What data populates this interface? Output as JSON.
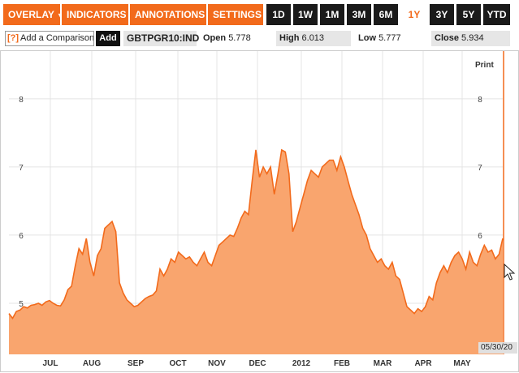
{
  "toolbar": {
    "menus": [
      {
        "label": "OVERLAY"
      },
      {
        "label": "INDICATORS"
      },
      {
        "label": "ANNOTATIONS"
      },
      {
        "label": "SETTINGS"
      }
    ],
    "ranges": [
      "1D",
      "1W",
      "1M",
      "3M",
      "6M",
      "1Y",
      "3Y",
      "5Y",
      "YTD"
    ],
    "active_range": "1Y"
  },
  "infobar": {
    "compare_icon": "[?]",
    "compare_placeholder": "Add a Comparison",
    "add_label": "Add",
    "ticker": "GBTPGR10:IND",
    "open_label": "Open",
    "open_value": "5.778",
    "high_label": "High",
    "high_value": "6.013",
    "low_label": "Low",
    "low_value": "5.777",
    "close_label": "Close",
    "close_value": "5.934"
  },
  "print_label": "Print",
  "date_badge": "05/30/20",
  "chart_data": {
    "type": "area",
    "x_tick_labels": [
      "JUL",
      "AUG",
      "SEP",
      "OCT",
      "NOV",
      "DEC",
      "2012",
      "FEB",
      "MAR",
      "APR",
      "MAY"
    ],
    "y_ticks": [
      5,
      6,
      7,
      8
    ],
    "ylim": [
      4.25,
      8.7
    ],
    "grid": true,
    "color": "#f26a1b",
    "fill": "#f9a56e",
    "series": [
      {
        "values": [
          4.85,
          4.78,
          4.88,
          4.9,
          4.95,
          4.93,
          4.97,
          4.98,
          5.0,
          4.97,
          5.02,
          5.04,
          5.0,
          4.97,
          4.96,
          5.05,
          5.2,
          5.25,
          5.55,
          5.8,
          5.72,
          5.95,
          5.6,
          5.4,
          5.7,
          5.8,
          6.1,
          6.15,
          6.2,
          6.05,
          5.3,
          5.15,
          5.05,
          5.0,
          4.95,
          4.97,
          5.02,
          5.07,
          5.1,
          5.12,
          5.18,
          5.5,
          5.4,
          5.5,
          5.65,
          5.6,
          5.75,
          5.7,
          5.65,
          5.68,
          5.6,
          5.55,
          5.65,
          5.75,
          5.6,
          5.55,
          5.7,
          5.85,
          5.9,
          5.95,
          6.0,
          5.98,
          6.1,
          6.25,
          6.35,
          6.3,
          6.8,
          7.25,
          6.85,
          7.0,
          6.9,
          7.0,
          6.6,
          6.9,
          7.25,
          7.22,
          6.9,
          6.05,
          6.2,
          6.4,
          6.6,
          6.8,
          6.95,
          6.9,
          6.85,
          7.0,
          7.05,
          7.1,
          7.1,
          6.95,
          7.15,
          7.0,
          6.8,
          6.6,
          6.45,
          6.3,
          6.1,
          6.0,
          5.8,
          5.7,
          5.6,
          5.65,
          5.55,
          5.5,
          5.6,
          5.4,
          5.35,
          5.15,
          4.95,
          4.9,
          4.85,
          4.92,
          4.88,
          4.95,
          5.1,
          5.05,
          5.3,
          5.45,
          5.55,
          5.45,
          5.6,
          5.7,
          5.75,
          5.65,
          5.5,
          5.75,
          5.6,
          5.55,
          5.72,
          5.85,
          5.75,
          5.78,
          5.65,
          5.72,
          5.95
        ]
      }
    ]
  }
}
